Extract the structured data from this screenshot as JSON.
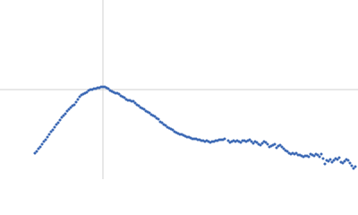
{
  "chart_data": {
    "type": "scatter",
    "xlim": [
      0,
      400
    ],
    "ylim": [
      0,
      200
    ],
    "crosshair": {
      "x": 115,
      "y": 100,
      "color": "#d0d0d0"
    },
    "series": [
      {
        "color": "#3b68b4",
        "x": [
          39,
          41,
          43,
          45,
          47,
          49,
          51,
          53,
          55,
          57,
          59,
          61,
          63,
          65,
          67,
          69,
          71,
          73,
          75,
          77,
          79,
          81,
          83,
          85,
          87,
          89,
          91,
          93,
          95,
          97,
          99,
          101,
          103,
          105,
          107,
          109,
          111,
          113,
          115,
          117,
          119,
          121,
          123,
          125,
          127,
          129,
          131,
          133,
          135,
          137,
          139,
          141,
          143,
          145,
          147,
          149,
          151,
          153,
          155,
          157,
          159,
          161,
          163,
          165,
          167,
          169,
          171,
          173,
          175,
          177,
          179,
          181,
          183,
          185,
          187,
          189,
          191,
          193,
          195,
          197,
          199,
          201,
          203,
          205,
          207,
          209,
          211,
          213,
          215,
          217,
          219,
          221,
          223,
          225,
          227,
          229,
          231,
          233,
          235,
          237,
          239,
          241,
          243,
          245,
          247,
          249,
          251,
          255,
          257,
          259,
          261,
          263,
          265,
          267,
          269,
          271,
          273,
          275,
          277,
          279,
          281,
          283,
          285,
          287,
          289,
          291,
          293,
          295,
          297,
          299,
          301,
          303,
          305,
          307,
          309,
          311,
          313,
          315,
          317,
          319,
          321,
          323,
          325,
          327,
          329,
          331,
          333,
          335,
          337,
          339,
          341,
          343,
          345,
          347,
          349,
          351,
          353,
          355,
          357,
          359,
          361,
          363,
          365,
          367,
          369,
          371,
          373,
          375,
          377,
          379,
          381,
          383,
          385,
          387,
          389,
          391,
          393,
          395,
          397
        ],
        "values": [
          29,
          31,
          34,
          36,
          39,
          42,
          44,
          47,
          50,
          53,
          55,
          58,
          61,
          63,
          66,
          69,
          71,
          73,
          76,
          78,
          80,
          82,
          83,
          86,
          89,
          92,
          94,
          95,
          96,
          97,
          99,
          100,
          100,
          101,
          101,
          102,
          102,
          103,
          103,
          103,
          102,
          101,
          99,
          98,
          97,
          96,
          96,
          95,
          93,
          92,
          91,
          89,
          88,
          88,
          87,
          87,
          85,
          83,
          82,
          80,
          79,
          78,
          76,
          75,
          74,
          72,
          71,
          70,
          68,
          67,
          64,
          63,
          61,
          60,
          58,
          57,
          56,
          55,
          53,
          52,
          51,
          50,
          50,
          49,
          48,
          47,
          47,
          46,
          45,
          45,
          45,
          44,
          44,
          43,
          43,
          42,
          43,
          42,
          41,
          42,
          42,
          43,
          43,
          44,
          44,
          44,
          45,
          43,
          41,
          42,
          43,
          42,
          43,
          42,
          41,
          43,
          43,
          42,
          43,
          44,
          42,
          40,
          42,
          41,
          39,
          38,
          40,
          42,
          41,
          39,
          36,
          37,
          38,
          39,
          35,
          37,
          38,
          36,
          34,
          32,
          31,
          29,
          28,
          29,
          28,
          29,
          27,
          27,
          26,
          25,
          26,
          26,
          25,
          28,
          27,
          26,
          28,
          27,
          25,
          28,
          23,
          17,
          21,
          20,
          22,
          19,
          21,
          23,
          22,
          24,
          19,
          18,
          20,
          22,
          21,
          18,
          15,
          12,
          14
        ]
      }
    ]
  }
}
